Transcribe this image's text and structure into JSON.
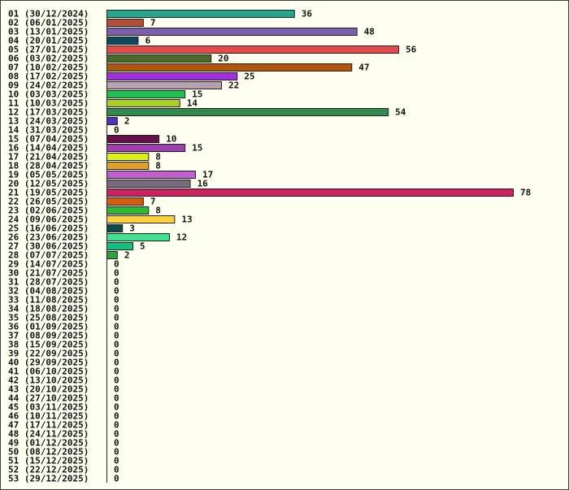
{
  "chart_data": {
    "type": "bar",
    "orientation": "horizontal",
    "title": "",
    "xlabel": "",
    "ylabel": "",
    "grid": false,
    "legend": "none",
    "xlim": [
      0,
      78
    ],
    "categories": [
      "01 (30/12/2024)",
      "02 (06/01/2025)",
      "03 (13/01/2025)",
      "04 (20/01/2025)",
      "05 (27/01/2025)",
      "06 (03/02/2025)",
      "07 (10/02/2025)",
      "08 (17/02/2025)",
      "09 (24/02/2025)",
      "10 (03/03/2025)",
      "11 (10/03/2025)",
      "12 (17/03/2025)",
      "13 (24/03/2025)",
      "14 (31/03/2025)",
      "15 (07/04/2025)",
      "16 (14/04/2025)",
      "17 (21/04/2025)",
      "18 (28/04/2025)",
      "19 (05/05/2025)",
      "20 (12/05/2025)",
      "21 (19/05/2025)",
      "22 (26/05/2025)",
      "23 (02/06/2025)",
      "24 (09/06/2025)",
      "25 (16/06/2025)",
      "26 (23/06/2025)",
      "27 (30/06/2025)",
      "28 (07/07/2025)",
      "29 (14/07/2025)",
      "30 (21/07/2025)",
      "31 (28/07/2025)",
      "32 (04/08/2025)",
      "33 (11/08/2025)",
      "34 (18/08/2025)",
      "35 (25/08/2025)",
      "36 (01/09/2025)",
      "37 (08/09/2025)",
      "38 (15/09/2025)",
      "39 (22/09/2025)",
      "40 (29/09/2025)",
      "41 (06/10/2025)",
      "42 (13/10/2025)",
      "43 (20/10/2025)",
      "44 (27/10/2025)",
      "45 (03/11/2025)",
      "46 (10/11/2025)",
      "47 (17/11/2025)",
      "48 (24/11/2025)",
      "49 (01/12/2025)",
      "50 (08/12/2025)",
      "51 (15/12/2025)",
      "52 (22/12/2025)",
      "53 (29/12/2025)"
    ],
    "values": [
      36,
      7,
      48,
      6,
      56,
      20,
      47,
      25,
      22,
      15,
      14,
      54,
      2,
      0,
      10,
      15,
      8,
      8,
      17,
      16,
      78,
      7,
      8,
      13,
      3,
      12,
      5,
      2,
      0,
      0,
      0,
      0,
      0,
      0,
      0,
      0,
      0,
      0,
      0,
      0,
      0,
      0,
      0,
      0,
      0,
      0,
      0,
      0,
      0,
      0,
      0,
      0,
      0
    ],
    "colors": [
      "#21a88a",
      "#b0503a",
      "#7b60b0",
      "#0f4760",
      "#e84a4a",
      "#4a6a2a",
      "#b0580a",
      "#a030e0",
      "#b8a0b0",
      "#20c050",
      "#a8d020",
      "#308a50",
      "#5030c0",
      "#ffffff",
      "#6a0f4a",
      "#a040b0",
      "#e0f010",
      "#e0a030",
      "#c060d0",
      "#7a6a80",
      "#d02060",
      "#d06010",
      "#30b830",
      "#ffd040",
      "#0f4a4a",
      "#40e090",
      "#10c080",
      "#30a040",
      "#ffffff",
      "#ffffff",
      "#ffffff",
      "#ffffff",
      "#ffffff",
      "#ffffff",
      "#ffffff",
      "#ffffff",
      "#ffffff",
      "#ffffff",
      "#ffffff",
      "#ffffff",
      "#ffffff",
      "#ffffff",
      "#ffffff",
      "#ffffff",
      "#ffffff",
      "#ffffff",
      "#ffffff",
      "#ffffff",
      "#ffffff",
      "#ffffff",
      "#ffffff",
      "#ffffff",
      "#ffffff"
    ],
    "bar_outline": "#202020",
    "background": "#fffff0"
  }
}
